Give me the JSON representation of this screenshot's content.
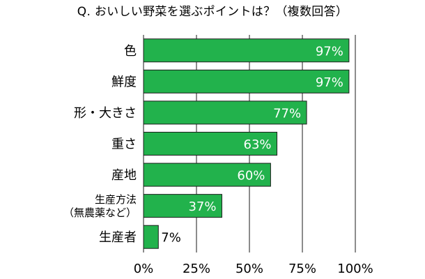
{
  "page": {
    "title": "Q. おいしい野菜を選ぶポイントは？（複数回答）"
  },
  "colors": {
    "bar": "#22b24c",
    "bar_stroke": "#1d1d1d",
    "grid": "#1a1a1a",
    "label_inside": "#ffffff",
    "label_outside": "#000000"
  },
  "chart_data": {
    "type": "bar",
    "orientation": "horizontal",
    "title": "Q. おいしい野菜を選ぶポイントは？（複数回答）",
    "categories": [
      {
        "label": [
          "色"
        ]
      },
      {
        "label": [
          "鮮度"
        ]
      },
      {
        "label": [
          "形・大きさ"
        ]
      },
      {
        "label": [
          "重さ"
        ]
      },
      {
        "label": [
          "産地"
        ]
      },
      {
        "label": [
          "生産方法",
          "（無農薬など）"
        ]
      },
      {
        "label": [
          "生産者"
        ]
      }
    ],
    "values": [
      97,
      97,
      77,
      63,
      60,
      37,
      7
    ],
    "value_labels": [
      "97%",
      "97%",
      "77%",
      "63%",
      "60%",
      "37%",
      "7%"
    ],
    "xlim": [
      0,
      100
    ],
    "xticks": [
      0,
      25,
      50,
      75,
      100
    ],
    "xtick_labels": [
      "0%",
      "25%",
      "50%",
      "75%",
      "100%"
    ],
    "grid": "vertical",
    "xlabel": "",
    "ylabel": ""
  }
}
